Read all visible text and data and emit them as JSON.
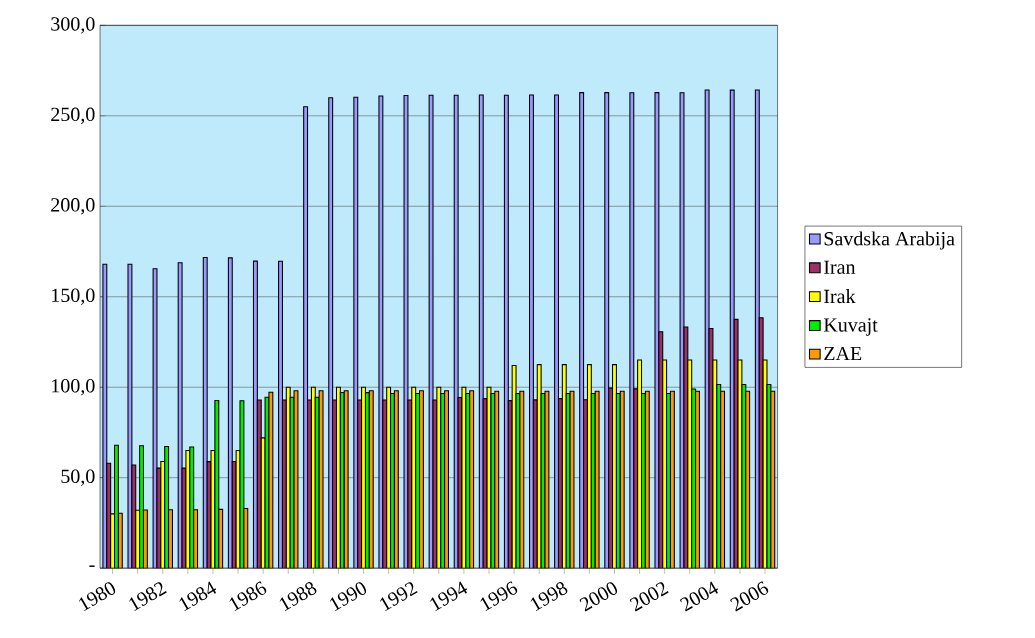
{
  "chart_data": {
    "type": "bar",
    "categories": [
      "1980",
      null,
      "1982",
      null,
      "1984",
      null,
      "1986",
      null,
      "1988",
      null,
      "1990",
      null,
      "1992",
      null,
      "1994",
      null,
      "1996",
      null,
      "1998",
      null,
      "2000",
      null,
      "2002",
      null,
      "2004",
      null,
      "2006"
    ],
    "series": [
      {
        "name": "Savdska Arabija",
        "color": "#9999ff",
        "values": [
          168,
          168,
          165.5,
          168.8,
          171.7,
          171.5,
          169.7,
          169.6,
          255,
          260,
          260.3,
          260.9,
          261.2,
          261.4,
          261.4,
          261.5,
          261.4,
          261.5,
          261.5,
          262.8,
          262.8,
          262.7,
          262.8,
          262.7,
          264.3,
          264.2,
          264.3
        ]
      },
      {
        "name": "Iran",
        "color": "#993366",
        "values": [
          58,
          57,
          55.3,
          55.3,
          58.9,
          59,
          92.9,
          92.9,
          92.9,
          92.9,
          92.9,
          92.9,
          92.9,
          92.9,
          94.3,
          93.7,
          92.6,
          93,
          93.7,
          93.1,
          99.5,
          99.1,
          130.7,
          133.3,
          132.5,
          137.5,
          138.4
        ]
      },
      {
        "name": "Irak",
        "color": "#ffff00",
        "values": [
          30,
          32,
          59,
          65,
          65,
          65,
          72,
          100,
          100,
          100,
          100,
          100,
          100,
          100,
          100,
          100,
          112,
          112.5,
          112.5,
          112.5,
          112.5,
          115,
          115,
          115,
          115,
          115,
          115
        ]
      },
      {
        "name": "Kuvajt",
        "color": "#00ee00",
        "values": [
          67.9,
          67.7,
          67.2,
          67,
          92.7,
          92.5,
          94.5,
          94.5,
          94.5,
          97.1,
          97,
          96.5,
          96.5,
          96.5,
          96.5,
          96.5,
          96.5,
          96.5,
          96.5,
          96.5,
          96.5,
          96.5,
          96.5,
          99,
          101.5,
          101.5,
          101.5
        ]
      },
      {
        "name": "ZAE",
        "color": "#ff9900",
        "values": [
          30.4,
          32.2,
          32.3,
          32.3,
          32.5,
          33,
          97.2,
          98.1,
          98.1,
          98.1,
          98.1,
          98.1,
          98.1,
          98.1,
          98.1,
          97.8,
          97.8,
          97.8,
          97.8,
          97.8,
          97.8,
          97.8,
          97.8,
          97.8,
          97.8,
          97.8,
          97.8
        ]
      }
    ],
    "ylim": [
      0,
      300
    ],
    "yticks": [
      {
        "value": 0,
        "label": "-"
      },
      {
        "value": 50,
        "label": "50,0"
      },
      {
        "value": 100,
        "label": "100,0"
      },
      {
        "value": 150,
        "label": "150,0"
      },
      {
        "value": 200,
        "label": "200,0"
      },
      {
        "value": 250,
        "label": "250,0"
      },
      {
        "value": 300,
        "label": "300,0"
      }
    ],
    "grid": "y",
    "legend": "right"
  }
}
